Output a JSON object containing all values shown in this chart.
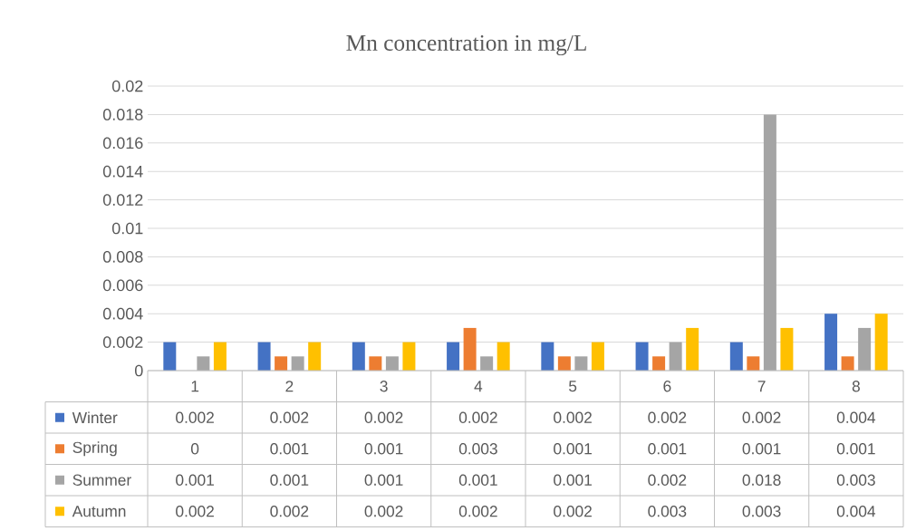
{
  "chart_data": {
    "type": "bar",
    "title": "Mn concentration in mg/L",
    "categories": [
      "1",
      "2",
      "3",
      "4",
      "5",
      "6",
      "7",
      "8"
    ],
    "series": [
      {
        "name": "Winter",
        "color": "#4472c4",
        "values": [
          0.002,
          0.002,
          0.002,
          0.002,
          0.002,
          0.002,
          0.002,
          0.004
        ]
      },
      {
        "name": "Spring",
        "color": "#ed7d31",
        "values": [
          0,
          0.001,
          0.001,
          0.003,
          0.001,
          0.001,
          0.001,
          0.001
        ]
      },
      {
        "name": "Summer",
        "color": "#a5a5a5",
        "values": [
          0.001,
          0.001,
          0.001,
          0.001,
          0.001,
          0.002,
          0.018,
          0.003
        ]
      },
      {
        "name": "Autumn",
        "color": "#ffc000",
        "values": [
          0.002,
          0.002,
          0.002,
          0.002,
          0.002,
          0.003,
          0.003,
          0.004
        ]
      }
    ],
    "ylim": [
      0,
      0.02
    ],
    "yticks": [
      0,
      0.002,
      0.004,
      0.006,
      0.008,
      0.01,
      0.012,
      0.014,
      0.016,
      0.018,
      0.02
    ],
    "grid": "y",
    "legend": "bottom",
    "data_labels": true
  }
}
